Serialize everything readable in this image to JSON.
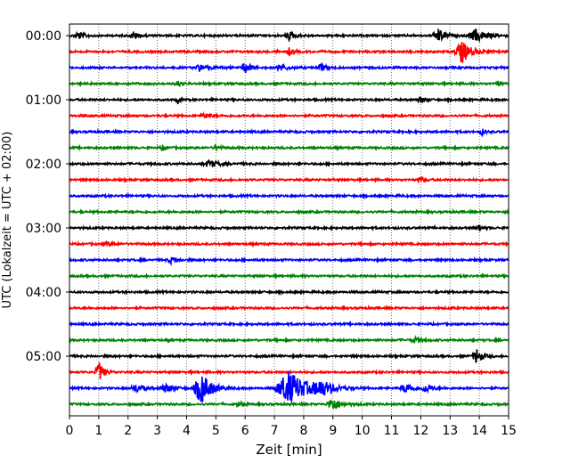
{
  "chart_data": {
    "type": "line",
    "title": "",
    "xlabel": "Zeit  [min]",
    "ylabel": "UTC (Lokalzeit = UTC + 02:00)",
    "xlim": [
      0,
      15
    ],
    "x_ticks": [
      "0",
      "1",
      "2",
      "3",
      "4",
      "5",
      "6",
      "7",
      "8",
      "9",
      "10",
      "11",
      "12",
      "13",
      "14",
      "15"
    ],
    "y_tick_labels": [
      "00:00",
      "01:00",
      "02:00",
      "03:00",
      "04:00",
      "05:00"
    ],
    "grid_x": true,
    "legend": "none",
    "colors": [
      "#000000",
      "#ff0000",
      "#0000ff",
      "#008000"
    ],
    "series": [
      {
        "start": "00:00",
        "color": "#000000",
        "events": [
          {
            "x": 0.3,
            "amp": 0.5,
            "width": 0.3
          },
          {
            "x": 2.2,
            "amp": 0.4,
            "width": 0.3
          },
          {
            "x": 7.5,
            "amp": 0.5,
            "width": 0.3
          },
          {
            "x": 12.6,
            "amp": 0.8,
            "width": 0.35
          },
          {
            "x": 13.9,
            "amp": 0.8,
            "width": 0.5
          }
        ]
      },
      {
        "start": "00:15",
        "color": "#ff0000",
        "events": [
          {
            "x": 7.5,
            "amp": 0.4,
            "width": 0.2
          },
          {
            "x": 13.4,
            "amp": 1.4,
            "width": 0.45
          }
        ]
      },
      {
        "start": "00:30",
        "color": "#0000ff",
        "events": [
          {
            "x": 4.5,
            "amp": 0.4,
            "width": 0.5
          },
          {
            "x": 6.0,
            "amp": 0.7,
            "width": 0.3
          },
          {
            "x": 7.2,
            "amp": 0.5,
            "width": 0.3
          },
          {
            "x": 8.6,
            "amp": 0.4,
            "width": 0.3
          }
        ]
      },
      {
        "start": "00:45",
        "color": "#008000",
        "events": [
          {
            "x": 3.7,
            "amp": 0.3,
            "width": 0.2
          },
          {
            "x": 14.6,
            "amp": 0.4,
            "width": 0.15
          }
        ]
      },
      {
        "start": "01:00",
        "color": "#000000",
        "events": [
          {
            "x": 3.7,
            "amp": 0.4,
            "width": 0.15
          },
          {
            "x": 12.0,
            "amp": 0.4,
            "width": 0.2
          }
        ]
      },
      {
        "start": "01:15",
        "color": "#ff0000",
        "events": [
          {
            "x": 4.6,
            "amp": 0.3,
            "width": 0.3
          }
        ]
      },
      {
        "start": "01:30",
        "color": "#0000ff",
        "events": [
          {
            "x": 14.1,
            "amp": 0.4,
            "width": 0.15
          }
        ]
      },
      {
        "start": "01:45",
        "color": "#008000",
        "events": [
          {
            "x": 3.2,
            "amp": 0.3,
            "width": 0.2
          },
          {
            "x": 5.0,
            "amp": 0.3,
            "width": 0.2
          }
        ]
      },
      {
        "start": "02:00",
        "color": "#000000",
        "events": [
          {
            "x": 4.8,
            "amp": 0.4,
            "width": 0.5
          }
        ]
      },
      {
        "start": "02:15",
        "color": "#ff0000",
        "events": [
          {
            "x": 12.0,
            "amp": 0.4,
            "width": 0.2
          }
        ]
      },
      {
        "start": "02:30",
        "color": "#0000ff",
        "events": []
      },
      {
        "start": "02:45",
        "color": "#008000",
        "events": []
      },
      {
        "start": "03:00",
        "color": "#000000",
        "events": [
          {
            "x": 14.0,
            "amp": 0.4,
            "width": 0.2
          }
        ]
      },
      {
        "start": "03:15",
        "color": "#ff0000",
        "events": [
          {
            "x": 1.3,
            "amp": 0.2,
            "width": 0.4
          }
        ]
      },
      {
        "start": "03:30",
        "color": "#0000ff",
        "events": [
          {
            "x": 3.5,
            "amp": 0.4,
            "width": 0.3
          }
        ]
      },
      {
        "start": "03:45",
        "color": "#008000",
        "events": []
      },
      {
        "start": "04:00",
        "color": "#000000",
        "events": []
      },
      {
        "start": "04:15",
        "color": "#ff0000",
        "events": []
      },
      {
        "start": "04:30",
        "color": "#0000ff",
        "events": []
      },
      {
        "start": "04:45",
        "color": "#008000",
        "events": [
          {
            "x": 11.8,
            "amp": 0.3,
            "width": 0.3
          }
        ]
      },
      {
        "start": "05:00",
        "color": "#000000",
        "events": [
          {
            "x": 13.9,
            "amp": 1.0,
            "width": 0.25
          }
        ]
      },
      {
        "start": "05:15",
        "color": "#ff0000",
        "events": [
          {
            "x": 1.0,
            "amp": 1.3,
            "width": 0.25
          }
        ]
      },
      {
        "start": "05:30",
        "color": "#0000ff",
        "events": [
          {
            "x": 2.3,
            "amp": 0.5,
            "width": 0.4
          },
          {
            "x": 3.3,
            "amp": 0.5,
            "width": 0.4
          },
          {
            "x": 4.5,
            "amp": 2.0,
            "width": 0.5
          },
          {
            "x": 7.5,
            "amp": 2.1,
            "width": 0.9
          },
          {
            "x": 8.6,
            "amp": 0.8,
            "width": 0.6
          },
          {
            "x": 11.5,
            "amp": 0.6,
            "width": 0.4
          },
          {
            "x": 12.2,
            "amp": 0.5,
            "width": 0.3
          }
        ]
      },
      {
        "start": "05:45",
        "color": "#008000",
        "events": [
          {
            "x": 9.0,
            "amp": 0.8,
            "width": 0.4
          },
          {
            "x": 5.8,
            "amp": 0.3,
            "width": 0.2
          }
        ]
      }
    ]
  }
}
